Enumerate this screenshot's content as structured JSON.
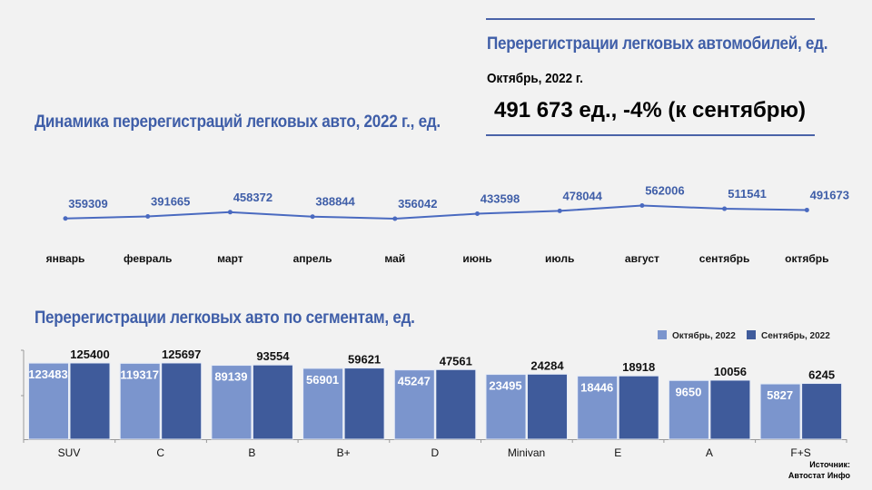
{
  "summary": {
    "title": "Перерегистрации легковых автомобилей, ед.",
    "period": "Октябрь, 2022 г.",
    "value": "491 673 ед., -4% (к сентябрю)"
  },
  "source": {
    "line1": "Источник:",
    "line2": "Автостат Инфо"
  },
  "colors": {
    "accent": "#3f5ea8",
    "october": "#7b95cd",
    "september": "#3f5b9b",
    "line": "#4a6ac0"
  },
  "chart_data": [
    {
      "type": "line",
      "title": "Динамика перерегистраций легковых авто, 2022 г., ед.",
      "categories": [
        "январь",
        "февраль",
        "март",
        "апрель",
        "май",
        "июнь",
        "июль",
        "август",
        "сентябрь",
        "октябрь"
      ],
      "values": [
        359309,
        391665,
        458372,
        388844,
        356042,
        433598,
        478044,
        562006,
        511541,
        491673
      ],
      "labels": [
        "359309",
        "391665",
        "458372",
        "388844",
        "356042",
        "433598",
        "478044",
        "562006",
        "511541",
        "491673"
      ],
      "ylim": [
        250000,
        600000
      ]
    },
    {
      "type": "bar",
      "title": "Перерегистрации легковых авто по сегментам, ед.",
      "categories": [
        "SUV",
        "C",
        "B",
        "B+",
        "D",
        "Minivan",
        "E",
        "A",
        "F+S"
      ],
      "yscale": "log",
      "ylim": [
        2,
        200000
      ],
      "legend": "top-right",
      "series": [
        {
          "name": "Октябрь, 2022",
          "values": [
            123483,
            119317,
            89139,
            56901,
            45247,
            23495,
            18446,
            9650,
            5827
          ]
        },
        {
          "name": "Сентябрь, 2022",
          "values": [
            125400,
            125697,
            93554,
            59621,
            47561,
            24284,
            18918,
            10056,
            6245
          ]
        }
      ]
    }
  ]
}
